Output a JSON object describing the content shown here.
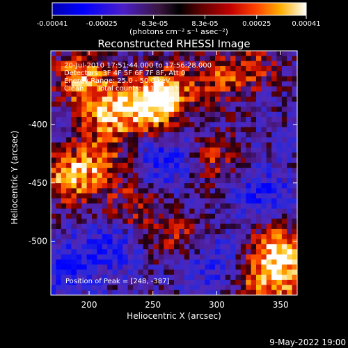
{
  "chart_data": {
    "type": "heatmap",
    "title": "Reconstructed RHESSI Image",
    "xlabel": "Heliocentric X (arcsec)",
    "ylabel": "Heliocentric Y (arcsec)",
    "xlim": [
      170,
      363
    ],
    "ylim": [
      -546,
      -337
    ],
    "x_ticks": [
      200,
      250,
      300,
      350
    ],
    "y_ticks": [
      -400,
      -450,
      -500
    ],
    "colorbar": {
      "label": "(photons cm⁻² s⁻¹ asec⁻²)",
      "range": [
        -0.00041,
        0.00041
      ],
      "ticks": [
        {
          "value": -0.00041,
          "label": "-0.00041"
        },
        {
          "value": -0.00025,
          "label": "-0.00025"
        },
        {
          "value": -8.3e-05,
          "label": "-8.3e-05"
        },
        {
          "value": 8.3e-05,
          "label": "8.3e-05"
        },
        {
          "value": 0.00025,
          "label": "0.00025"
        },
        {
          "value": 0.00041,
          "label": "0.00041"
        }
      ]
    },
    "annotations": {
      "time_range": "20-Jul-2010 17:51:44.000 to 17:56:28.000",
      "detectors": "Detectors: 3F 4F 5F 6F 7F 8F, Att 0",
      "energy_range": "Energy Range: 25.0 - 50.0 keV",
      "clean_counts": "Clean      Total counts: 5.19E+03",
      "peak_position": "Position of Peak = [248, -387]"
    },
    "bright_regions": [
      {
        "x": 195,
        "y": -360,
        "level": 0.9
      },
      {
        "x": 215,
        "y": -390,
        "level": 0.85
      },
      {
        "x": 185,
        "y": -445,
        "level": 0.9
      },
      {
        "x": 210,
        "y": -430,
        "level": 0.6
      },
      {
        "x": 248,
        "y": -387,
        "level": 1.0
      },
      {
        "x": 260,
        "y": -370,
        "level": 0.7
      },
      {
        "x": 300,
        "y": -362,
        "level": 0.55
      },
      {
        "x": 330,
        "y": -350,
        "level": 0.5
      },
      {
        "x": 300,
        "y": -430,
        "level": 0.55
      },
      {
        "x": 235,
        "y": -470,
        "level": 0.5
      },
      {
        "x": 270,
        "y": -495,
        "level": 0.45
      },
      {
        "x": 345,
        "y": -505,
        "level": 0.8
      },
      {
        "x": 355,
        "y": -530,
        "level": 0.75
      },
      {
        "x": 330,
        "y": -535,
        "level": 0.55
      }
    ],
    "dark_regions": [
      {
        "x": 260,
        "y": -430,
        "level": -0.6
      },
      {
        "x": 300,
        "y": -520,
        "level": -0.5
      },
      {
        "x": 180,
        "y": -525,
        "level": -0.55
      },
      {
        "x": 335,
        "y": -460,
        "level": -0.55
      },
      {
        "x": 215,
        "y": -505,
        "level": -0.5
      }
    ]
  },
  "footer": {
    "date": "9-May-2022 19:00"
  }
}
